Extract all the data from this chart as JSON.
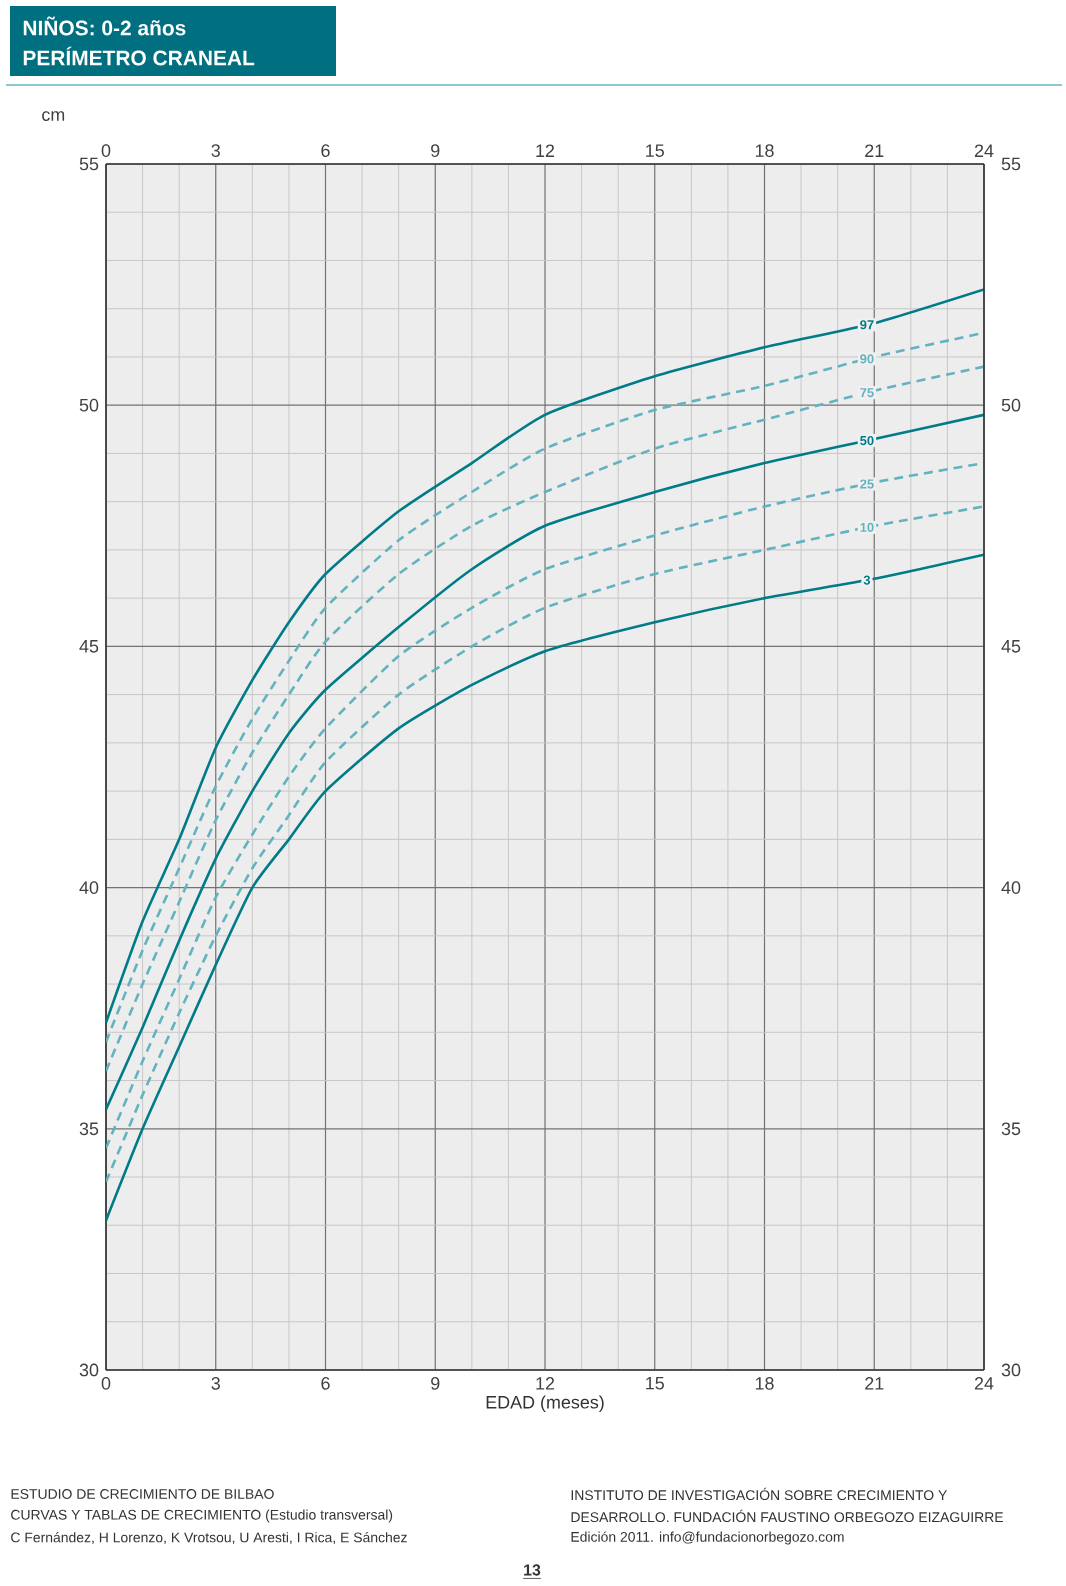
{
  "chart_data": {
    "type": "line",
    "title": "NIÑOS: 0-2 años",
    "subtitle": "PERÍMETRO CRANEAL",
    "xlabel": "EDAD (meses)",
    "ylabel": "cm",
    "x": [
      0,
      1,
      2,
      3,
      4,
      5,
      6,
      8,
      10,
      12,
      15,
      18,
      21,
      24
    ],
    "series": [
      {
        "name": "97",
        "color": "#007b87",
        "line_style": "solid",
        "values": [
          37.2,
          39.3,
          41.0,
          42.9,
          44.3,
          45.5,
          46.5,
          47.8,
          48.8,
          49.8,
          50.6,
          51.2,
          51.7,
          52.4
        ]
      },
      {
        "name": "90",
        "color": "#62b3bf",
        "line_style": "dashed",
        "values": [
          36.8,
          38.7,
          40.4,
          42.1,
          43.5,
          44.7,
          45.8,
          47.2,
          48.2,
          49.1,
          49.9,
          50.4,
          51.0,
          51.5
        ]
      },
      {
        "name": "75",
        "color": "#62b3bf",
        "line_style": "dashed",
        "values": [
          36.2,
          38.0,
          39.7,
          41.4,
          42.8,
          44.0,
          45.1,
          46.5,
          47.5,
          48.2,
          49.1,
          49.7,
          50.3,
          50.8
        ]
      },
      {
        "name": "50",
        "color": "#007b87",
        "line_style": "solid",
        "values": [
          35.4,
          37.1,
          38.9,
          40.6,
          42.0,
          43.2,
          44.1,
          45.4,
          46.6,
          47.5,
          48.2,
          48.8,
          49.3,
          49.8
        ]
      },
      {
        "name": "25",
        "color": "#62b3bf",
        "line_style": "dashed",
        "values": [
          34.6,
          36.4,
          38.1,
          39.8,
          41.1,
          42.3,
          43.3,
          44.8,
          45.8,
          46.6,
          47.3,
          47.9,
          48.4,
          48.8
        ]
      },
      {
        "name": "10",
        "color": "#62b3bf",
        "line_style": "dashed",
        "values": [
          33.9,
          35.7,
          37.4,
          39.0,
          40.4,
          41.5,
          42.6,
          44.0,
          45.0,
          45.8,
          46.5,
          47.0,
          47.5,
          47.9
        ]
      },
      {
        "name": "3",
        "color": "#007b87",
        "line_style": "solid",
        "values": [
          33.1,
          35.0,
          36.7,
          38.4,
          40.0,
          41.0,
          42.0,
          43.3,
          44.2,
          44.9,
          45.5,
          46.0,
          46.4,
          46.9
        ]
      }
    ],
    "xlim": [
      0,
      24
    ],
    "xticks": [
      0,
      3,
      6,
      9,
      12,
      15,
      18,
      21,
      24
    ],
    "x2lim": [
      0,
      24
    ],
    "x2ticks": [
      0,
      3,
      6,
      9,
      12,
      15,
      18,
      21,
      24
    ],
    "ylim": [
      30,
      55
    ],
    "yticks": [
      30,
      35,
      40,
      45,
      50,
      55
    ],
    "y2lim": [
      30,
      55
    ],
    "y2ticks": [
      30,
      35,
      40,
      45,
      50,
      55
    ],
    "grid": true,
    "marker": "none",
    "annotations": [
      "ESTUDIO DE CRECIMIENTO DE BILBAO",
      "CURVAS Y TABLAS DE CRECIMIENTO (Estudio transversal)",
      "C Fernández, H Lorenzo, K Vrotsou, U Aresti, I Rica, E Sánchez",
      "INSTITUTO DE INVESTIGACIÓN SOBRE CRECIMIENTO Y",
      "DESARROLLO. FUNDACIÓN FAUSTINO ORBEGOZO EIZAGUIRRE",
      "Edición 2011. info@fundacionorbegozo.com",
      "13"
    ]
  }
}
